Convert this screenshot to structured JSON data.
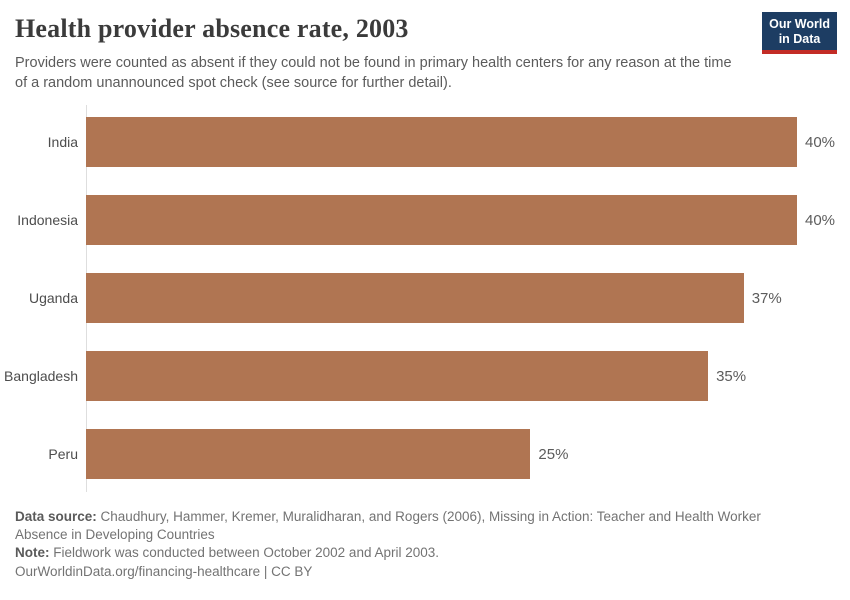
{
  "header": {
    "logo": {
      "line1": "Our World",
      "line2": "in Data"
    }
  },
  "chart_data": {
    "type": "bar",
    "orientation": "horizontal",
    "title": "Health provider absence rate, 2003",
    "subtitle": "Providers were counted as absent if they could not be found in primary health centers for any reason at the time of a random unannounced spot check (see source for further detail).",
    "categories": [
      "India",
      "Indonesia",
      "Uganda",
      "Bangladesh",
      "Peru"
    ],
    "values": [
      40,
      40,
      37,
      35,
      25
    ],
    "value_labels": [
      "40%",
      "40%",
      "37%",
      "35%",
      "25%"
    ],
    "xlim": [
      0,
      40
    ],
    "unit": "%",
    "bar_color": "#b07552",
    "grid": false,
    "legend": false
  },
  "footer": {
    "source_label": "Data source:",
    "source_text": "Chaudhury, Hammer, Kremer, Muralidharan, and Rogers (2006), Missing in Action: Teacher and Health Worker Absence in Developing Countries",
    "note_label": "Note:",
    "note_text": "Fieldwork was conducted between October 2002 and April 2003.",
    "link_text": "OurWorldinData.org/financing-healthcare | CC BY"
  },
  "colors": {
    "bar": "#b07552",
    "axis_line": "#dedede",
    "logo_bg": "#1d3d63",
    "logo_underline": "#c32c26",
    "title_text": "#3b3b3b",
    "subtitle_text": "#5b5b5b"
  }
}
